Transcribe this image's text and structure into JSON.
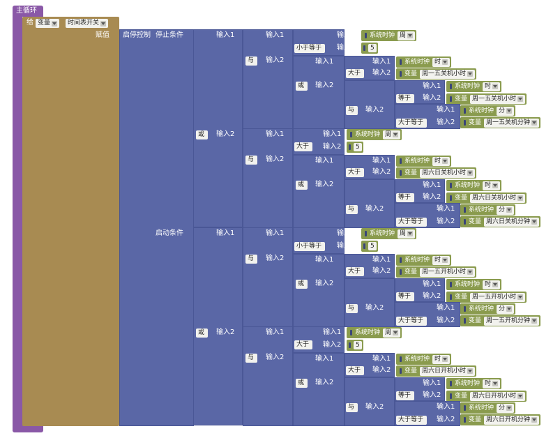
{
  "main": {
    "title": "主循环"
  },
  "set": {
    "label": "给",
    "var_type": "变量",
    "var_name": "时间表开关",
    "assign_label": "赋值"
  },
  "control": {
    "label": "启停控制",
    "stop_label": "停止条件",
    "start_label": "启动条件"
  },
  "labels": {
    "input1": "输入1",
    "input2": "输入2"
  },
  "ops": {
    "and": "与",
    "or": "或",
    "lte": "小于等于",
    "gt": "大于",
    "eq": "等于",
    "gte": "大于等于"
  },
  "clock": {
    "label": "系统时钟",
    "week": "周",
    "hour": "时",
    "minute": "分"
  },
  "var_label": "变量",
  "numbers": {
    "five": "5"
  },
  "stop_conditions": {
    "weekday": {
      "off_hour": "周一五关机小时",
      "off_min": "周一五关机分钟"
    },
    "weekend": {
      "off_hour": "周六日关机小时",
      "off_min": "周六日关机分钟"
    }
  },
  "start_conditions": {
    "weekday": {
      "on_hour": "周一五开机小时",
      "on_min": "周一五开机分钟"
    },
    "weekend": {
      "on_hour": "周六日开机小时",
      "on_min": "周六日开机分钟"
    }
  }
}
